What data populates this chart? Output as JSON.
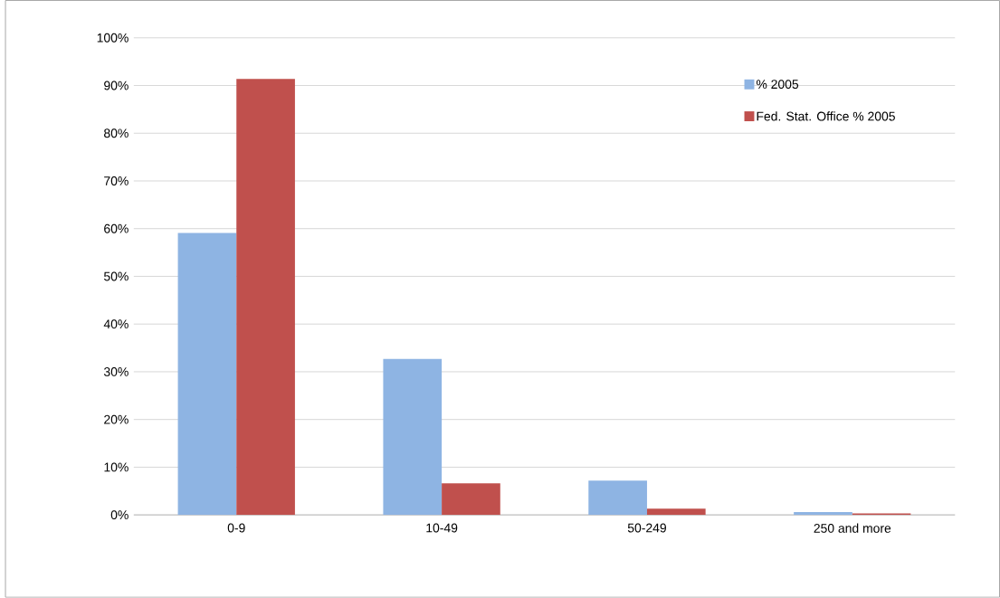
{
  "chart_data": {
    "type": "bar",
    "categories": [
      "0-9",
      "10-49",
      "50-249",
      "250 and more"
    ],
    "series": [
      {
        "name": "% 2005",
        "color": "#8eb4e3",
        "values": [
          59.1,
          32.7,
          7.2,
          0.6
        ]
      },
      {
        "name": "Fed. Stat. Office % 2005",
        "color": "#c0504d",
        "values": [
          91.4,
          6.6,
          1.3,
          0.3
        ]
      }
    ],
    "ylim": [
      0,
      100
    ],
    "yticks": [
      {
        "value": 0,
        "label": "0%"
      },
      {
        "value": 10,
        "label": "10%"
      },
      {
        "value": 20,
        "label": "20%"
      },
      {
        "value": 30,
        "label": "30%"
      },
      {
        "value": 40,
        "label": "40%"
      },
      {
        "value": 50,
        "label": "50%"
      },
      {
        "value": 60,
        "label": "60%"
      },
      {
        "value": 70,
        "label": "70%"
      },
      {
        "value": 80,
        "label": "80%"
      },
      {
        "value": 90,
        "label": "90%"
      },
      {
        "value": 100,
        "label": "100%"
      }
    ],
    "grid": "y",
    "legend": "top right"
  }
}
